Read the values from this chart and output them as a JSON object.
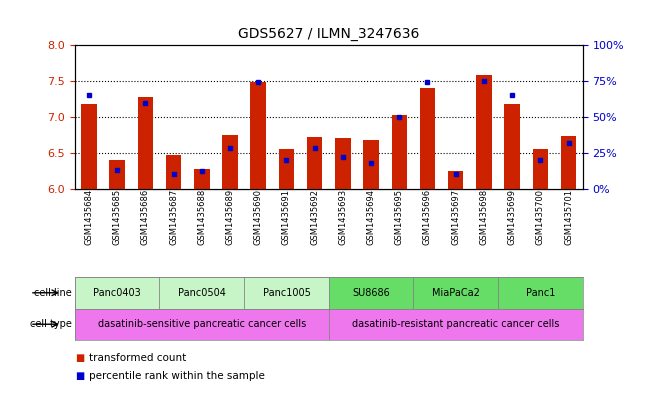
{
  "title": "GDS5627 / ILMN_3247636",
  "samples": [
    "GSM1435684",
    "GSM1435685",
    "GSM1435686",
    "GSM1435687",
    "GSM1435688",
    "GSM1435689",
    "GSM1435690",
    "GSM1435691",
    "GSM1435692",
    "GSM1435693",
    "GSM1435694",
    "GSM1435695",
    "GSM1435696",
    "GSM1435697",
    "GSM1435698",
    "GSM1435699",
    "GSM1435700",
    "GSM1435701"
  ],
  "red_values": [
    7.18,
    6.4,
    7.28,
    6.47,
    6.28,
    6.75,
    7.48,
    6.55,
    6.72,
    6.7,
    6.68,
    7.02,
    7.4,
    6.25,
    7.58,
    7.18,
    6.55,
    6.73
  ],
  "blue_values": [
    65,
    13,
    60,
    10,
    12,
    28,
    74,
    20,
    28,
    22,
    18,
    50,
    74,
    10,
    75,
    65,
    20,
    32
  ],
  "cell_lines": [
    {
      "name": "Panc0403",
      "start": 0,
      "end": 2
    },
    {
      "name": "Panc0504",
      "start": 3,
      "end": 5
    },
    {
      "name": "Panc1005",
      "start": 6,
      "end": 8
    },
    {
      "name": "SU8686",
      "start": 9,
      "end": 11
    },
    {
      "name": "MiaPaCa2",
      "start": 12,
      "end": 14
    },
    {
      "name": "Panc1",
      "start": 15,
      "end": 17
    }
  ],
  "cell_line_color_sensitive": "#c8f5c8",
  "cell_line_color_resistant": "#66dd66",
  "cell_types": [
    {
      "name": "dasatinib-sensitive pancreatic cancer cells",
      "start": 0,
      "end": 8
    },
    {
      "name": "dasatinib-resistant pancreatic cancer cells",
      "start": 9,
      "end": 17
    }
  ],
  "cell_type_color": "#ee77ee",
  "ylim_left": [
    6.0,
    8.0
  ],
  "ylim_right": [
    0,
    100
  ],
  "yticks_left": [
    6.0,
    6.5,
    7.0,
    7.5,
    8.0
  ],
  "yticks_right": [
    0,
    25,
    50,
    75,
    100
  ],
  "bar_color": "#cc2200",
  "dot_color": "#0000cc",
  "bar_width": 0.55,
  "ylabel_left_color": "#cc2200",
  "ylabel_right_color": "#0000cc",
  "title_fontsize": 10,
  "tick_label_fontsize": 6,
  "annotation_fontsize": 7,
  "legend_fontsize": 7.5
}
